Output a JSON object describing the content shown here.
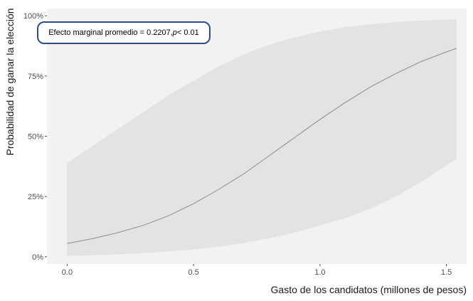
{
  "chart_data": {
    "type": "area",
    "title": "",
    "xlabel": "Gasto de los candidatos (millones de pesos)",
    "ylabel": "Probabilidad de ganar la elección",
    "xlim": [
      -0.08,
      1.58
    ],
    "ylim": [
      -0.03,
      1.03
    ],
    "x_ticks": [
      0.0,
      0.5,
      1.0,
      1.5
    ],
    "x_tick_labels": [
      "0.0",
      "0.5",
      "1.0",
      "1.5"
    ],
    "y_ticks": [
      0,
      0.25,
      0.5,
      0.75,
      1.0
    ],
    "y_tick_labels": [
      "0%",
      "25%",
      "50%",
      "75%",
      "100%"
    ],
    "grid": false,
    "colors": {
      "panel": "#f2f2f2",
      "ribbon": "#e3e3e3",
      "line": "#8c8c8c",
      "annotation_border": "#2e4d8a"
    },
    "series": [
      {
        "x": [
          0.0,
          0.1,
          0.2,
          0.3,
          0.4,
          0.5,
          0.6,
          0.7,
          0.8,
          0.9,
          1.0,
          1.1,
          1.2,
          1.3,
          1.4,
          1.5,
          1.54
        ],
        "y": [
          0.055,
          0.075,
          0.1,
          0.13,
          0.17,
          0.22,
          0.28,
          0.345,
          0.42,
          0.495,
          0.57,
          0.64,
          0.705,
          0.76,
          0.81,
          0.85,
          0.865
        ],
        "lower": [
          0.003,
          0.006,
          0.01,
          0.015,
          0.022,
          0.03,
          0.042,
          0.057,
          0.077,
          0.1,
          0.13,
          0.16,
          0.2,
          0.25,
          0.31,
          0.38,
          0.405
        ],
        "upper": [
          0.39,
          0.46,
          0.53,
          0.6,
          0.67,
          0.73,
          0.79,
          0.84,
          0.88,
          0.91,
          0.935,
          0.953,
          0.965,
          0.974,
          0.98,
          0.984,
          0.985
        ]
      }
    ],
    "annotation": {
      "prefix": "Efecto marginal promedio = 0.2207, ",
      "p_symbol": "p",
      "suffix": " < 0.01"
    }
  }
}
